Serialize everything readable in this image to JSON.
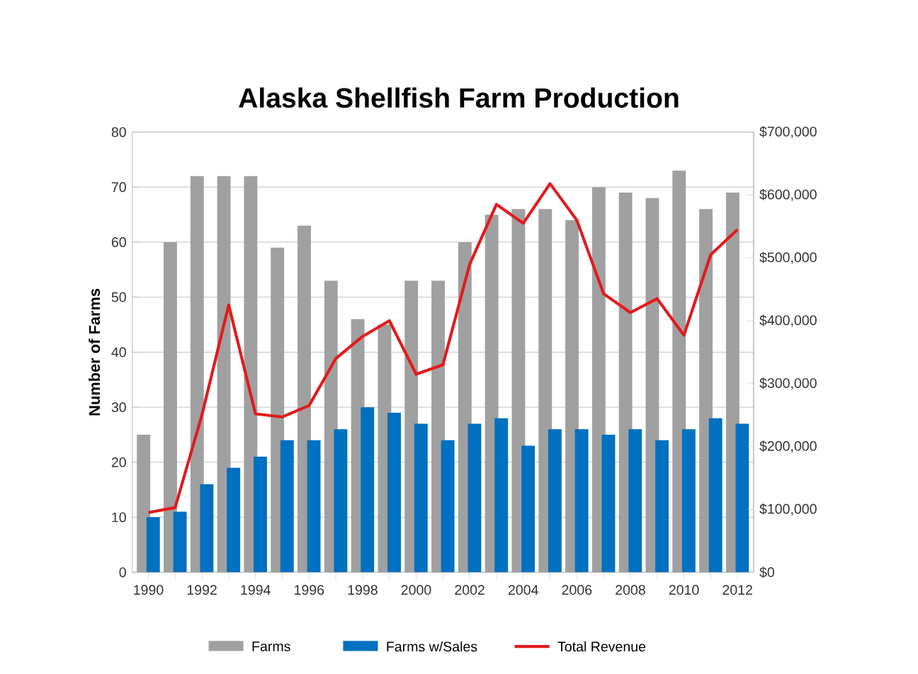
{
  "chart_data": {
    "type": "bar",
    "title": "Alaska Shellfish Farm Production",
    "ylabel": "Number of Farms",
    "categories": [
      "1990",
      null,
      "1992",
      null,
      "1994",
      null,
      "1996",
      null,
      "1998",
      null,
      "2000",
      null,
      "2002",
      null,
      "2004",
      null,
      "2006",
      null,
      "2008",
      null,
      "2010",
      null,
      "2012"
    ],
    "series": [
      {
        "name": "Farms",
        "color": "#a0a0a0",
        "values": [
          25,
          60,
          72,
          72,
          72,
          59,
          63,
          53,
          46,
          45,
          53,
          53,
          60,
          65,
          66,
          66,
          64,
          70,
          69,
          68,
          73,
          66,
          69
        ]
      },
      {
        "name": "Farms w/Sales",
        "color": "#0070c0",
        "values": [
          10,
          11,
          16,
          19,
          21,
          24,
          24,
          26,
          30,
          29,
          27,
          24,
          27,
          28,
          23,
          26,
          26,
          25,
          26,
          24,
          26,
          28,
          27
        ]
      },
      {
        "name": "Total Revenue",
        "type": "line",
        "axis": "y2",
        "color": "#e31a1c",
        "values": [
          95000,
          103000,
          250000,
          425000,
          252000,
          247000,
          265000,
          340000,
          375000,
          400000,
          315000,
          330000,
          490000,
          585000,
          555000,
          618000,
          560000,
          443000,
          413000,
          435000,
          377000,
          505000,
          545000
        ]
      }
    ],
    "ylim": [
      0,
      80
    ],
    "yticks": [
      0,
      10,
      20,
      30,
      40,
      50,
      60,
      70,
      80
    ],
    "y2lim": [
      0,
      700000
    ],
    "y2ticks": [
      {
        "value": 0,
        "label": "$0"
      },
      {
        "value": 100000,
        "label": "$100,000"
      },
      {
        "value": 200000,
        "label": "$200,000"
      },
      {
        "value": 300000,
        "label": "$300,000"
      },
      {
        "value": 400000,
        "label": "$400,000"
      },
      {
        "value": 500000,
        "label": "$500,000"
      },
      {
        "value": 600000,
        "label": "$600,000"
      },
      {
        "value": 700000,
        "label": "$700,000"
      }
    ],
    "grid": "y",
    "legend": "bottom"
  }
}
